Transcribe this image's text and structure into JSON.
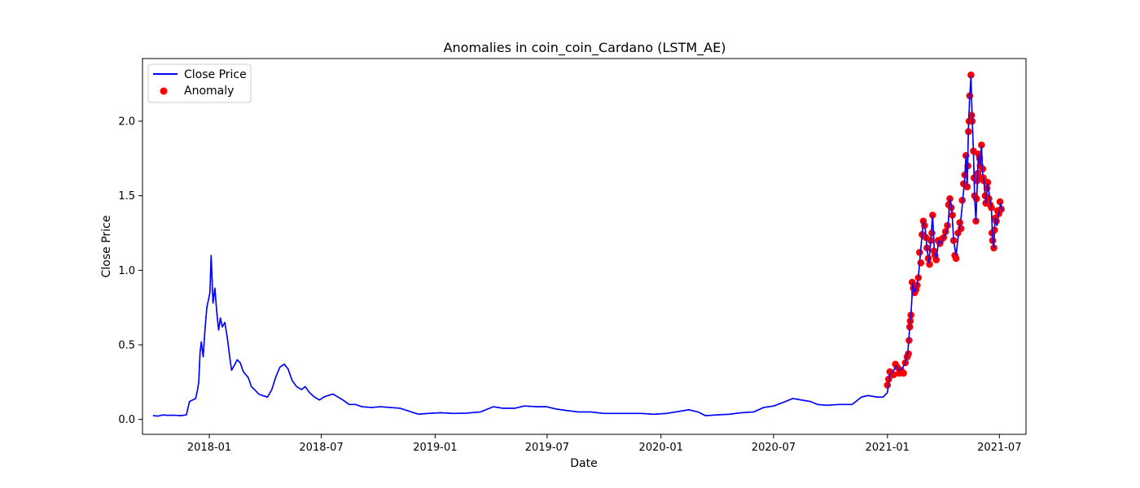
{
  "chart_data": {
    "type": "line",
    "title": "Anomalies in coin_coin_Cardano (LSTM_AE)",
    "xlabel": "Date",
    "ylabel": "Close Price",
    "xlim": [
      "2017-09-15",
      "2021-08-13"
    ],
    "ylim": [
      -0.1,
      2.42
    ],
    "grid": false,
    "legend_position": "top-left",
    "x_ticks": [
      "2018-01",
      "2018-07",
      "2019-01",
      "2019-07",
      "2020-01",
      "2020-07",
      "2021-01",
      "2021-07"
    ],
    "y_ticks": [
      "0.0",
      "0.5",
      "1.0",
      "1.5",
      "2.0"
    ],
    "colors": {
      "line": "#0000ff",
      "anomaly": "#ff0000"
    },
    "series": [
      {
        "name": "Close Price",
        "kind": "line",
        "points": [
          [
            "2017-10-02",
            0.025
          ],
          [
            "2017-10-10",
            0.022
          ],
          [
            "2017-10-18",
            0.03
          ],
          [
            "2017-10-26",
            0.027
          ],
          [
            "2017-11-05",
            0.028
          ],
          [
            "2017-11-15",
            0.025
          ],
          [
            "2017-11-25",
            0.03
          ],
          [
            "2017-11-30",
            0.12
          ],
          [
            "2017-12-05",
            0.13
          ],
          [
            "2017-12-10",
            0.14
          ],
          [
            "2017-12-13",
            0.2
          ],
          [
            "2017-12-15",
            0.25
          ],
          [
            "2017-12-17",
            0.45
          ],
          [
            "2017-12-19",
            0.52
          ],
          [
            "2017-12-22",
            0.42
          ],
          [
            "2017-12-25",
            0.6
          ],
          [
            "2017-12-28",
            0.75
          ],
          [
            "2018-01-02",
            0.85
          ],
          [
            "2018-01-04",
            1.1
          ],
          [
            "2018-01-07",
            0.78
          ],
          [
            "2018-01-10",
            0.88
          ],
          [
            "2018-01-13",
            0.72
          ],
          [
            "2018-01-16",
            0.6
          ],
          [
            "2018-01-19",
            0.68
          ],
          [
            "2018-01-22",
            0.62
          ],
          [
            "2018-01-26",
            0.65
          ],
          [
            "2018-01-30",
            0.55
          ],
          [
            "2018-02-03",
            0.42
          ],
          [
            "2018-02-06",
            0.33
          ],
          [
            "2018-02-10",
            0.36
          ],
          [
            "2018-02-15",
            0.4
          ],
          [
            "2018-02-20",
            0.38
          ],
          [
            "2018-02-25",
            0.32
          ],
          [
            "2018-03-05",
            0.28
          ],
          [
            "2018-03-10",
            0.22
          ],
          [
            "2018-03-15",
            0.2
          ],
          [
            "2018-03-22",
            0.17
          ],
          [
            "2018-03-28",
            0.16
          ],
          [
            "2018-04-05",
            0.15
          ],
          [
            "2018-04-12",
            0.2
          ],
          [
            "2018-04-18",
            0.28
          ],
          [
            "2018-04-25",
            0.35
          ],
          [
            "2018-05-02",
            0.37
          ],
          [
            "2018-05-08",
            0.34
          ],
          [
            "2018-05-15",
            0.26
          ],
          [
            "2018-05-22",
            0.22
          ],
          [
            "2018-05-30",
            0.2
          ],
          [
            "2018-06-05",
            0.22
          ],
          [
            "2018-06-12",
            0.18
          ],
          [
            "2018-06-20",
            0.15
          ],
          [
            "2018-06-28",
            0.13
          ],
          [
            "2018-07-05",
            0.15
          ],
          [
            "2018-07-12",
            0.16
          ],
          [
            "2018-07-20",
            0.17
          ],
          [
            "2018-07-28",
            0.15
          ],
          [
            "2018-08-05",
            0.13
          ],
          [
            "2018-08-15",
            0.1
          ],
          [
            "2018-08-25",
            0.1
          ],
          [
            "2018-09-05",
            0.085
          ],
          [
            "2018-09-20",
            0.08
          ],
          [
            "2018-10-05",
            0.085
          ],
          [
            "2018-10-20",
            0.08
          ],
          [
            "2018-11-05",
            0.075
          ],
          [
            "2018-11-20",
            0.055
          ],
          [
            "2018-12-05",
            0.035
          ],
          [
            "2018-12-20",
            0.04
          ],
          [
            "2019-01-10",
            0.045
          ],
          [
            "2019-01-30",
            0.04
          ],
          [
            "2019-02-20",
            0.042
          ],
          [
            "2019-03-15",
            0.05
          ],
          [
            "2019-04-05",
            0.085
          ],
          [
            "2019-04-20",
            0.075
          ],
          [
            "2019-05-10",
            0.075
          ],
          [
            "2019-05-25",
            0.09
          ],
          [
            "2019-06-15",
            0.085
          ],
          [
            "2019-06-30",
            0.085
          ],
          [
            "2019-07-15",
            0.07
          ],
          [
            "2019-08-01",
            0.06
          ],
          [
            "2019-08-20",
            0.05
          ],
          [
            "2019-09-10",
            0.05
          ],
          [
            "2019-09-30",
            0.04
          ],
          [
            "2019-10-20",
            0.04
          ],
          [
            "2019-11-10",
            0.04
          ],
          [
            "2019-12-01",
            0.04
          ],
          [
            "2019-12-20",
            0.035
          ],
          [
            "2020-01-10",
            0.04
          ],
          [
            "2020-02-01",
            0.055
          ],
          [
            "2020-02-15",
            0.065
          ],
          [
            "2020-03-01",
            0.05
          ],
          [
            "2020-03-13",
            0.025
          ],
          [
            "2020-03-30",
            0.03
          ],
          [
            "2020-04-20",
            0.035
          ],
          [
            "2020-05-10",
            0.045
          ],
          [
            "2020-05-30",
            0.05
          ],
          [
            "2020-06-15",
            0.08
          ],
          [
            "2020-07-01",
            0.09
          ],
          [
            "2020-07-20",
            0.12
          ],
          [
            "2020-08-01",
            0.14
          ],
          [
            "2020-08-15",
            0.13
          ],
          [
            "2020-08-30",
            0.12
          ],
          [
            "2020-09-10",
            0.1
          ],
          [
            "2020-09-25",
            0.095
          ],
          [
            "2020-10-15",
            0.1
          ],
          [
            "2020-11-05",
            0.1
          ],
          [
            "2020-11-20",
            0.15
          ],
          [
            "2020-12-01",
            0.16
          ],
          [
            "2020-12-15",
            0.15
          ],
          [
            "2020-12-25",
            0.15
          ],
          [
            "2021-01-01",
            0.18
          ],
          [
            "2021-01-05",
            0.3
          ],
          [
            "2021-01-10",
            0.32
          ],
          [
            "2021-01-15",
            0.36
          ],
          [
            "2021-01-20",
            0.33
          ],
          [
            "2021-01-25",
            0.34
          ],
          [
            "2021-01-30",
            0.38
          ],
          [
            "2021-02-03",
            0.45
          ],
          [
            "2021-02-06",
            0.62
          ],
          [
            "2021-02-08",
            0.7
          ],
          [
            "2021-02-11",
            0.92
          ],
          [
            "2021-02-14",
            0.85
          ],
          [
            "2021-02-17",
            0.88
          ],
          [
            "2021-02-20",
            0.95
          ],
          [
            "2021-02-23",
            1.1
          ],
          [
            "2021-02-26",
            1.24
          ],
          [
            "2021-02-28",
            1.33
          ],
          [
            "2021-03-03",
            1.28
          ],
          [
            "2021-03-06",
            1.15
          ],
          [
            "2021-03-09",
            1.05
          ],
          [
            "2021-03-12",
            1.2
          ],
          [
            "2021-03-15",
            1.37
          ],
          [
            "2021-03-18",
            1.12
          ],
          [
            "2021-03-21",
            1.08
          ],
          [
            "2021-03-25",
            1.2
          ],
          [
            "2021-03-29",
            1.18
          ],
          [
            "2021-04-02",
            1.22
          ],
          [
            "2021-04-06",
            1.25
          ],
          [
            "2021-04-09",
            1.3
          ],
          [
            "2021-04-12",
            1.48
          ],
          [
            "2021-04-15",
            1.42
          ],
          [
            "2021-04-18",
            1.2
          ],
          [
            "2021-04-22",
            1.1
          ],
          [
            "2021-04-26",
            1.25
          ],
          [
            "2021-04-30",
            1.35
          ],
          [
            "2021-05-03",
            1.48
          ],
          [
            "2021-05-06",
            1.62
          ],
          [
            "2021-05-08",
            1.77
          ],
          [
            "2021-05-10",
            1.56
          ],
          [
            "2021-05-12",
            1.95
          ],
          [
            "2021-05-14",
            2.17
          ],
          [
            "2021-05-16",
            2.3
          ],
          [
            "2021-05-18",
            2.02
          ],
          [
            "2021-05-20",
            1.8
          ],
          [
            "2021-05-22",
            1.5
          ],
          [
            "2021-05-24",
            1.33
          ],
          [
            "2021-05-26",
            1.55
          ],
          [
            "2021-05-28",
            1.78
          ],
          [
            "2021-05-31",
            1.7
          ],
          [
            "2021-06-02",
            1.84
          ],
          [
            "2021-06-04",
            1.65
          ],
          [
            "2021-06-06",
            1.6
          ],
          [
            "2021-06-09",
            1.45
          ],
          [
            "2021-06-12",
            1.58
          ],
          [
            "2021-06-15",
            1.5
          ],
          [
            "2021-06-18",
            1.42
          ],
          [
            "2021-06-20",
            1.2
          ],
          [
            "2021-06-22",
            1.15
          ],
          [
            "2021-06-24",
            1.35
          ],
          [
            "2021-06-27",
            1.3
          ],
          [
            "2021-06-30",
            1.38
          ],
          [
            "2021-07-03",
            1.45
          ],
          [
            "2021-07-06",
            1.4
          ]
        ]
      },
      {
        "name": "Anomaly",
        "kind": "scatter",
        "points": [
          [
            "2021-01-01",
            0.23
          ],
          [
            "2021-01-03",
            0.27
          ],
          [
            "2021-01-05",
            0.32
          ],
          [
            "2021-01-08",
            0.3
          ],
          [
            "2021-01-11",
            0.3
          ],
          [
            "2021-01-14",
            0.37
          ],
          [
            "2021-01-17",
            0.35
          ],
          [
            "2021-01-20",
            0.31
          ],
          [
            "2021-01-23",
            0.33
          ],
          [
            "2021-01-27",
            0.31
          ],
          [
            "2021-01-30",
            0.38
          ],
          [
            "2021-02-02",
            0.42
          ],
          [
            "2021-02-04",
            0.44
          ],
          [
            "2021-02-05",
            0.53
          ],
          [
            "2021-02-06",
            0.62
          ],
          [
            "2021-02-07",
            0.66
          ],
          [
            "2021-02-08",
            0.7
          ],
          [
            "2021-02-10",
            0.92
          ],
          [
            "2021-02-12",
            0.88
          ],
          [
            "2021-02-14",
            0.85
          ],
          [
            "2021-02-16",
            0.87
          ],
          [
            "2021-02-18",
            0.9
          ],
          [
            "2021-02-20",
            0.95
          ],
          [
            "2021-02-22",
            1.12
          ],
          [
            "2021-02-24",
            1.05
          ],
          [
            "2021-02-26",
            1.24
          ],
          [
            "2021-02-28",
            1.33
          ],
          [
            "2021-03-02",
            1.3
          ],
          [
            "2021-03-04",
            1.22
          ],
          [
            "2021-03-06",
            1.15
          ],
          [
            "2021-03-08",
            1.08
          ],
          [
            "2021-03-10",
            1.04
          ],
          [
            "2021-03-12",
            1.2
          ],
          [
            "2021-03-14",
            1.25
          ],
          [
            "2021-03-15",
            1.37
          ],
          [
            "2021-03-17",
            1.13
          ],
          [
            "2021-03-19",
            1.1
          ],
          [
            "2021-03-21",
            1.07
          ],
          [
            "2021-03-24",
            1.2
          ],
          [
            "2021-03-27",
            1.18
          ],
          [
            "2021-03-30",
            1.21
          ],
          [
            "2021-04-02",
            1.22
          ],
          [
            "2021-04-05",
            1.26
          ],
          [
            "2021-04-08",
            1.3
          ],
          [
            "2021-04-10",
            1.44
          ],
          [
            "2021-04-12",
            1.48
          ],
          [
            "2021-04-14",
            1.42
          ],
          [
            "2021-04-16",
            1.37
          ],
          [
            "2021-04-18",
            1.2
          ],
          [
            "2021-04-20",
            1.1
          ],
          [
            "2021-04-22",
            1.08
          ],
          [
            "2021-04-25",
            1.25
          ],
          [
            "2021-04-28",
            1.32
          ],
          [
            "2021-04-30",
            1.28
          ],
          [
            "2021-05-02",
            1.47
          ],
          [
            "2021-05-04",
            1.58
          ],
          [
            "2021-05-06",
            1.64
          ],
          [
            "2021-05-08",
            1.77
          ],
          [
            "2021-05-10",
            1.56
          ],
          [
            "2021-05-11",
            1.7
          ],
          [
            "2021-05-12",
            1.93
          ],
          [
            "2021-05-13",
            2.0
          ],
          [
            "2021-05-14",
            2.17
          ],
          [
            "2021-05-16",
            2.31
          ],
          [
            "2021-05-17",
            2.04
          ],
          [
            "2021-05-18",
            2.0
          ],
          [
            "2021-05-20",
            1.8
          ],
          [
            "2021-05-21",
            1.62
          ],
          [
            "2021-05-22",
            1.5
          ],
          [
            "2021-05-24",
            1.33
          ],
          [
            "2021-05-25",
            1.48
          ],
          [
            "2021-05-26",
            1.6
          ],
          [
            "2021-05-27",
            1.65
          ],
          [
            "2021-05-28",
            1.78
          ],
          [
            "2021-05-30",
            1.75
          ],
          [
            "2021-05-31",
            1.7
          ],
          [
            "2021-06-01",
            1.62
          ],
          [
            "2021-06-02",
            1.84
          ],
          [
            "2021-06-04",
            1.68
          ],
          [
            "2021-06-05",
            1.62
          ],
          [
            "2021-06-06",
            1.6
          ],
          [
            "2021-06-08",
            1.5
          ],
          [
            "2021-06-09",
            1.45
          ],
          [
            "2021-06-11",
            1.55
          ],
          [
            "2021-06-12",
            1.59
          ],
          [
            "2021-06-14",
            1.48
          ],
          [
            "2021-06-16",
            1.44
          ],
          [
            "2021-06-18",
            1.42
          ],
          [
            "2021-06-19",
            1.25
          ],
          [
            "2021-06-20",
            1.2
          ],
          [
            "2021-06-22",
            1.15
          ],
          [
            "2021-06-23",
            1.27
          ],
          [
            "2021-06-24",
            1.35
          ],
          [
            "2021-06-26",
            1.33
          ],
          [
            "2021-06-28",
            1.4
          ],
          [
            "2021-06-30",
            1.38
          ],
          [
            "2021-07-02",
            1.46
          ],
          [
            "2021-07-04",
            1.41
          ]
        ]
      }
    ]
  }
}
